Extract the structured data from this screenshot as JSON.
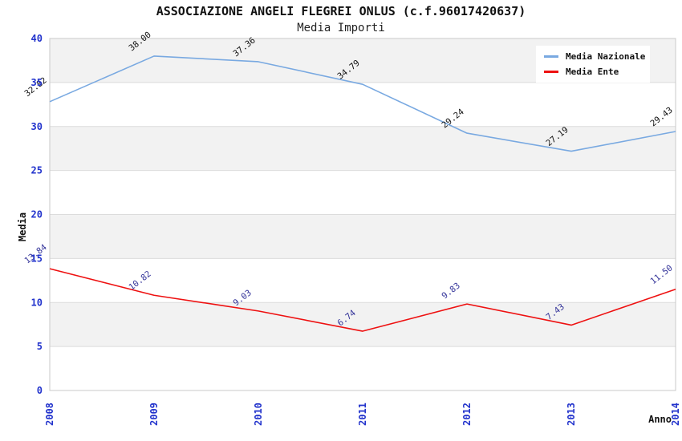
{
  "title": "ASSOCIAZIONE ANGELI FLEGREI ONLUS (c.f.96017420637)",
  "subtitle": "Media Importi",
  "chart_data": {
    "type": "line",
    "x": [
      "2008",
      "2009",
      "2010",
      "2011",
      "2012",
      "2013",
      "2014"
    ],
    "xlabel": "Anno",
    "ylabel": "Media",
    "ylim": [
      0,
      40
    ],
    "ytick_step": 5,
    "yticks": [
      0,
      5,
      10,
      15,
      20,
      25,
      30,
      35,
      40
    ],
    "grid": true,
    "legend_position": "top-right",
    "series": [
      {
        "name": "Media Nazionale",
        "color": "#79a9e1",
        "label_color": "#111111",
        "values": [
          32.82,
          38.0,
          37.36,
          34.79,
          29.24,
          27.19,
          29.43
        ]
      },
      {
        "name": "Media Ente",
        "color": "#ee1111",
        "label_color": "#333399",
        "values": [
          13.84,
          10.82,
          9.03,
          6.74,
          9.83,
          7.43,
          11.5
        ]
      }
    ]
  },
  "colors": {
    "tick_label": "#2233cc",
    "band_gray": "#f2f2f2",
    "band_white": "#ffffff",
    "gridline": "#dcdcdc",
    "plot_border": "#c9c9c9"
  }
}
